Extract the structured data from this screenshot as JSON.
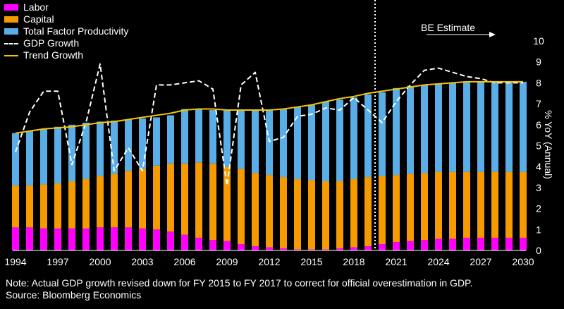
{
  "chart_data": {
    "type": "bar",
    "stacked": true,
    "x": [
      1994,
      1995,
      1996,
      1997,
      1998,
      1999,
      2000,
      2001,
      2002,
      2003,
      2004,
      2005,
      2006,
      2007,
      2008,
      2009,
      2010,
      2011,
      2012,
      2013,
      2014,
      2015,
      2016,
      2017,
      2018,
      2019,
      2020,
      2021,
      2022,
      2023,
      2024,
      2025,
      2026,
      2027,
      2028,
      2029,
      2030
    ],
    "x_tick_labels": [
      "1994",
      "1997",
      "2000",
      "2003",
      "2006",
      "2009",
      "2012",
      "2015",
      "2018",
      "2021",
      "2024",
      "2027",
      "2030"
    ],
    "series": [
      {
        "name": "Labor",
        "color": "#ff00ff",
        "values": [
          1.1,
          1.1,
          1.05,
          1.05,
          1.05,
          1.05,
          1.1,
          1.1,
          1.1,
          1.05,
          1.0,
          0.9,
          0.75,
          0.6,
          0.5,
          0.45,
          0.3,
          0.2,
          0.15,
          0.1,
          0.05,
          0.05,
          0.05,
          0.1,
          0.15,
          0.2,
          0.3,
          0.4,
          0.45,
          0.5,
          0.55,
          0.55,
          0.6,
          0.6,
          0.6,
          0.6,
          0.6
        ]
      },
      {
        "name": "Capital",
        "color": "#f59b00",
        "values": [
          2.0,
          2.0,
          2.1,
          2.15,
          2.25,
          2.35,
          2.45,
          2.55,
          2.7,
          2.85,
          3.05,
          3.25,
          3.4,
          3.6,
          3.65,
          3.55,
          3.6,
          3.5,
          3.45,
          3.4,
          3.35,
          3.3,
          3.25,
          3.2,
          3.25,
          3.3,
          3.25,
          3.2,
          3.2,
          3.2,
          3.2,
          3.2,
          3.15,
          3.15,
          3.15,
          3.15,
          3.15
        ]
      },
      {
        "name": "Total Factor Productivity",
        "color": "#5aaee8",
        "values": [
          2.5,
          2.6,
          2.65,
          2.7,
          2.7,
          2.7,
          2.6,
          2.55,
          2.45,
          2.4,
          2.3,
          2.3,
          2.6,
          2.55,
          2.55,
          2.7,
          2.8,
          3.0,
          3.1,
          3.25,
          3.45,
          3.6,
          3.8,
          3.9,
          3.9,
          3.95,
          4.0,
          4.15,
          4.2,
          4.2,
          4.2,
          4.25,
          4.3,
          4.3,
          4.3,
          4.3,
          4.3
        ]
      }
    ],
    "lines": [
      {
        "name": "GDP Growth",
        "style": "dashed",
        "color": "#ffffff",
        "values": [
          4.7,
          6.6,
          7.6,
          7.6,
          4.1,
          6.1,
          8.9,
          3.8,
          4.9,
          3.8,
          7.9,
          7.9,
          8.0,
          8.1,
          7.7,
          3.1,
          7.9,
          8.5,
          5.2,
          5.4,
          6.4,
          6.5,
          6.8,
          6.7,
          7.3,
          6.7,
          6.1,
          7.1,
          7.9,
          8.6,
          8.7,
          8.5,
          8.3,
          8.2,
          8.0,
          8.0,
          8.0
        ]
      },
      {
        "name": "Trend Growth",
        "style": "solid",
        "color": "#f5c400",
        "values": [
          5.6,
          5.7,
          5.8,
          5.85,
          5.9,
          6.0,
          6.1,
          6.15,
          6.25,
          6.35,
          6.45,
          6.55,
          6.7,
          6.75,
          6.75,
          6.7,
          6.7,
          6.7,
          6.7,
          6.75,
          6.85,
          6.95,
          7.1,
          7.25,
          7.35,
          7.5,
          7.6,
          7.7,
          7.8,
          7.9,
          7.95,
          8.0,
          8.05,
          8.05,
          8.05,
          8.05,
          8.05
        ]
      }
    ],
    "ylim": [
      0,
      10
    ],
    "y_ticks": [
      "0",
      "1",
      "2",
      "3",
      "4",
      "5",
      "6",
      "7",
      "8",
      "9",
      "10"
    ],
    "ylabel": "% YoY (Annual)",
    "estimate_start_year": 2019.5,
    "estimate_label": "BE Estimate",
    "legend": [
      "Labor",
      "Capital",
      "Total Factor Productivity",
      "GDP Growth",
      "Trend Growth"
    ],
    "legend_position": "top-left"
  },
  "notes": {
    "line1": "Note: Actual GDP growth revised down for FY 2015 to FY 2017 to correct for official overestimation in GDP.",
    "line2": "Source: Bloomberg Economics"
  }
}
